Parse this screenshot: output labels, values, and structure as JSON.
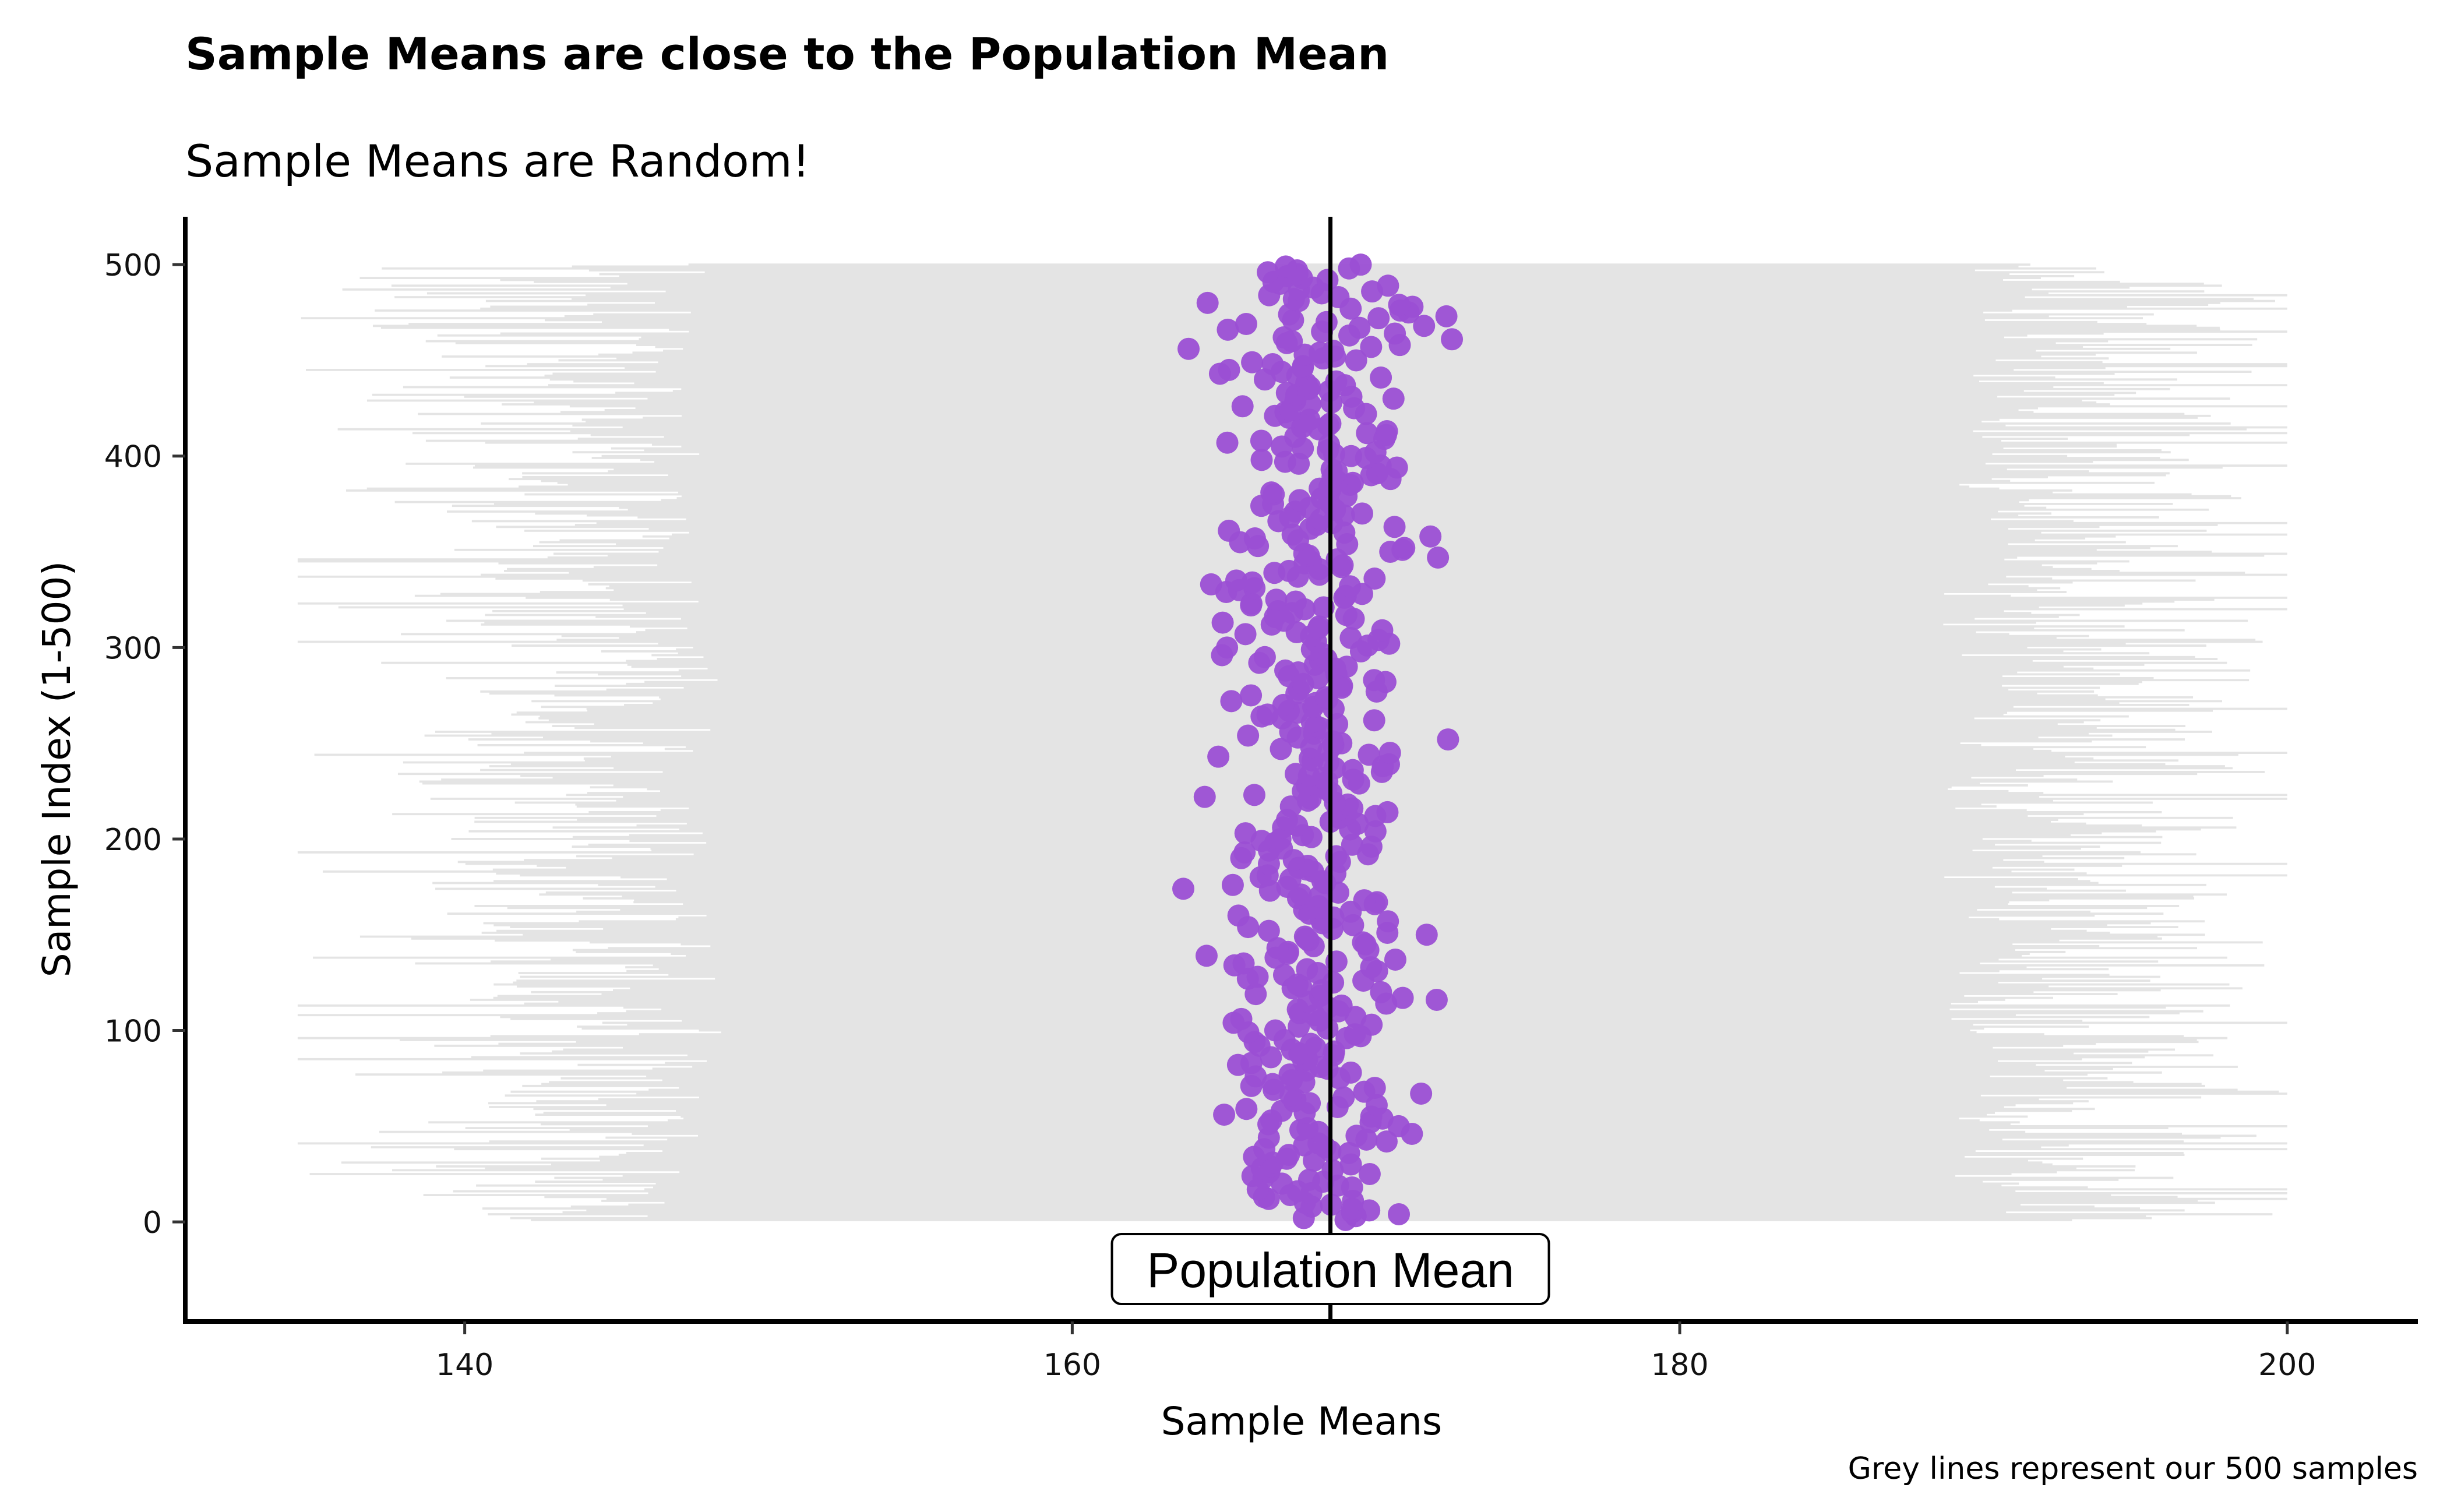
{
  "chart_data": {
    "type": "scatter",
    "title": "Sample Means are close to the Population Mean",
    "subtitle": "Sample Means are Random!",
    "xlabel": "Sample Means",
    "ylabel": "Sample Index (1-500)",
    "caption": "Grey lines represent our 500 samples",
    "annotation": "Population Mean",
    "population_mean": 168.5,
    "xlim": [
      130.8,
      204.3
    ],
    "ylim": [
      -52,
      525
    ],
    "x_ticks": [
      140,
      160,
      180,
      200
    ],
    "y_ticks": [
      0,
      100,
      200,
      300,
      400,
      500
    ],
    "n_samples": 500,
    "sample_means_range": [
      163.5,
      172.5
    ],
    "sample_range_extent": [
      134.5,
      200
    ],
    "grid": false,
    "legend": "none",
    "colors": {
      "points": "#9b4fd4",
      "sample_lines": "#e4e4e4",
      "population_line": "#000000"
    }
  }
}
